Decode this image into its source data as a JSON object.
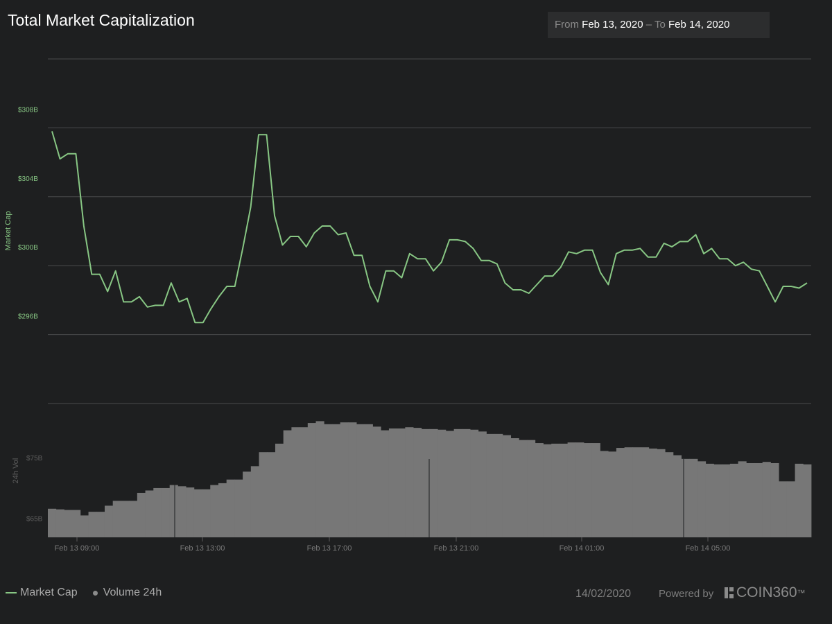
{
  "header": {
    "title": "Total Market Capitalization",
    "range_from_label": "From",
    "range_from_value": "Feb 13, 2020",
    "range_sep": "–",
    "range_to_label": "To",
    "range_to_value": "Feb 14, 2020"
  },
  "legend": {
    "market_cap": "Market Cap",
    "volume": "Volume 24h"
  },
  "footer": {
    "date": "14/02/2020",
    "powered_by": "Powered by",
    "brand": "COIN360",
    "trademark": "™"
  },
  "colors": {
    "background": "#1e1f20",
    "line": "#88c784",
    "bars": "#777777",
    "grid": "#4a4b4c",
    "tick_text": "#7a7a7a"
  },
  "chart_data": [
    {
      "type": "line",
      "ylabel": "Market Cap",
      "ylim": [
        292,
        312
      ],
      "y_ticks": [
        296,
        300,
        304,
        308
      ],
      "y_tick_labels": [
        "$296B",
        "$300B",
        "$304B",
        "$308B"
      ],
      "x_tick_labels": [
        "Feb 13 09:00",
        "Feb 13 13:00",
        "Feb 13 17:00",
        "Feb 13 21:00",
        "Feb 14 01:00",
        "Feb 14 05:00"
      ],
      "grid": true,
      "series": [
        {
          "name": "Market Cap",
          "values": [
            307.8,
            306.2,
            306.5,
            306.5,
            302.3,
            299.5,
            299.5,
            298.5,
            299.7,
            297.9,
            297.9,
            298.2,
            297.6,
            297.7,
            297.7,
            299.0,
            297.9,
            298.1,
            296.7,
            296.7,
            297.5,
            298.2,
            298.8,
            298.8,
            301.0,
            303.4,
            307.6,
            307.6,
            302.9,
            301.2,
            301.7,
            301.7,
            301.1,
            301.9,
            302.3,
            302.3,
            301.8,
            301.9,
            300.6,
            300.6,
            298.8,
            297.9,
            299.7,
            299.7,
            299.3,
            300.7,
            300.4,
            300.4,
            299.7,
            300.2,
            301.5,
            301.5,
            301.4,
            301.0,
            300.3,
            300.3,
            300.1,
            299.0,
            298.6,
            298.6,
            298.4,
            298.9,
            299.4,
            299.4,
            299.9,
            300.8,
            300.7,
            300.9,
            300.9,
            299.6,
            298.9,
            300.7,
            300.9,
            300.9,
            301.0,
            300.5,
            300.5,
            301.3,
            301.1,
            301.4,
            301.4,
            301.8,
            300.7,
            301.0,
            300.4,
            300.4,
            300.0,
            300.2,
            299.8,
            299.7,
            298.8,
            297.9,
            298.8,
            298.8,
            298.7,
            299.0
          ]
        }
      ]
    },
    {
      "type": "bar",
      "ylabel": "24h Vol",
      "ylim": [
        62,
        84
      ],
      "y_ticks": [
        65,
        75
      ],
      "y_tick_labels": [
        "$65B",
        "$75B"
      ],
      "series": [
        {
          "name": "Volume 24h",
          "values": [
            66.7,
            66.6,
            66.5,
            66.5,
            65.6,
            66.2,
            66.2,
            67.2,
            68.0,
            68.0,
            68.0,
            69.3,
            69.7,
            70.1,
            70.1,
            70.6,
            70.4,
            70.2,
            69.9,
            69.9,
            70.6,
            70.9,
            71.5,
            71.5,
            72.8,
            73.7,
            76.0,
            76.0,
            77.4,
            79.6,
            80.1,
            80.1,
            80.8,
            81.1,
            80.6,
            80.6,
            80.9,
            80.9,
            80.6,
            80.6,
            80.2,
            79.6,
            79.9,
            79.9,
            80.1,
            80.0,
            79.8,
            79.8,
            79.7,
            79.5,
            79.8,
            79.8,
            79.7,
            79.4,
            79.0,
            79.0,
            78.8,
            78.3,
            78.0,
            78.0,
            77.5,
            77.3,
            77.4,
            77.4,
            77.6,
            77.6,
            77.5,
            77.5,
            76.2,
            76.1,
            76.7,
            76.8,
            76.8,
            76.8,
            76.6,
            76.5,
            76.0,
            75.5,
            74.9,
            74.9,
            74.5,
            74.1,
            74.0,
            74.0,
            74.1,
            74.5,
            74.2,
            74.2,
            74.4,
            74.2,
            71.2,
            71.2,
            74.1,
            74.0
          ]
        }
      ]
    }
  ]
}
